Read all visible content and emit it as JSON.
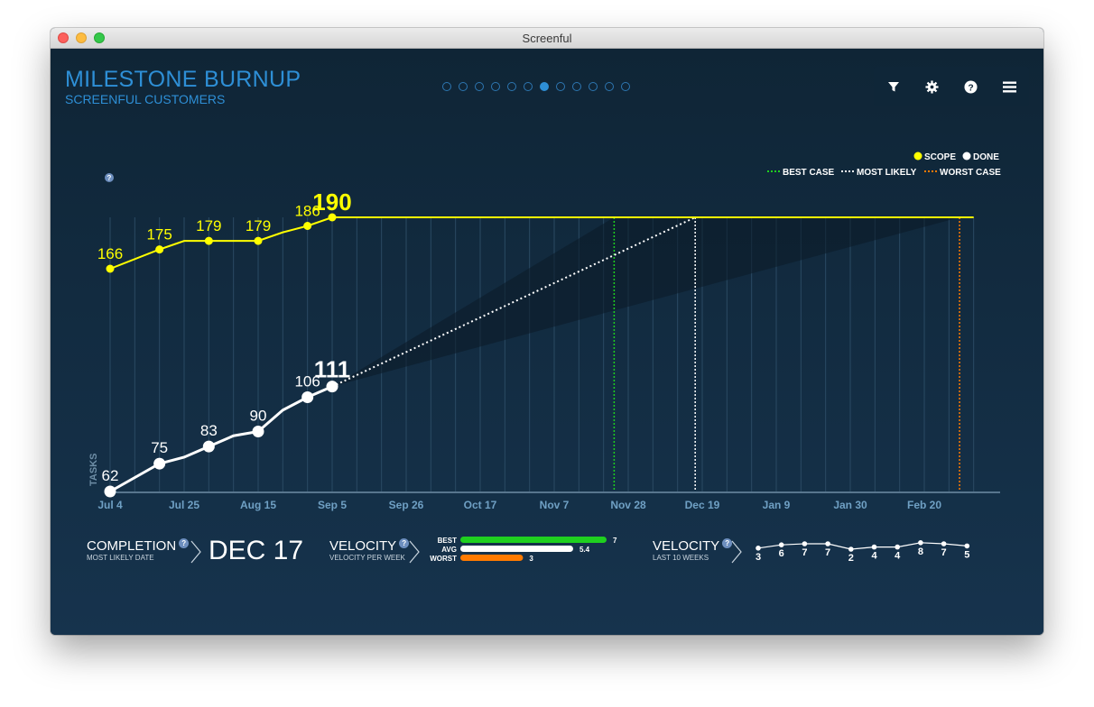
{
  "window": {
    "title": "Screenful"
  },
  "header": {
    "title": "MILESTONE BURNUP",
    "subtitle": "SCREENFUL CUSTOMERS"
  },
  "pager": {
    "count": 12,
    "active_index": 6
  },
  "toolbar": {
    "icons": [
      "filter-icon",
      "gear-icon",
      "help-icon",
      "menu-icon"
    ]
  },
  "legend": {
    "scope": "SCOPE",
    "done": "DONE",
    "best": "BEST CASE",
    "likely": "MOST LIKELY",
    "worst": "WORST CASE"
  },
  "help_mark": "?",
  "chart_data": {
    "type": "line",
    "ylabel": "TASKS",
    "x_ticks": [
      "Jul 4",
      "Jul 25",
      "Aug 15",
      "Sep 5",
      "Sep 26",
      "Oct 17",
      "Nov 7",
      "Nov 28",
      "Dec 19",
      "Jan 9",
      "Jan 30",
      "Feb 20"
    ],
    "colors": {
      "scope": "#ffff00",
      "done": "#ffffff",
      "best": "#1fd01f",
      "likely": "#ffffff",
      "worst": "#ff7a00",
      "grid": "#2a4a63",
      "axis": "#6e8ea6"
    },
    "series": [
      {
        "name": "SCOPE",
        "points": [
          {
            "x": "Jul 4",
            "y": 166,
            "label": "166"
          },
          {
            "x": "Jul 18",
            "y": 175,
            "label": "175"
          },
          {
            "x": "Jul 25",
            "y": 179
          },
          {
            "x": "Aug 1",
            "y": 179,
            "label": "179"
          },
          {
            "x": "Aug 15",
            "y": 179,
            "label": "179"
          },
          {
            "x": "Aug 22",
            "y": 183
          },
          {
            "x": "Aug 29",
            "y": 186,
            "label": "186"
          },
          {
            "x": "Sep 5",
            "y": 190,
            "label": "190"
          }
        ],
        "projection_end": "Mar 6"
      },
      {
        "name": "DONE",
        "points": [
          {
            "x": "Jul 4",
            "y": 62,
            "label": "62"
          },
          {
            "x": "Jul 18",
            "y": 75,
            "label": "75"
          },
          {
            "x": "Jul 25",
            "y": 78
          },
          {
            "x": "Aug 1",
            "y": 83,
            "label": "83"
          },
          {
            "x": "Aug 8",
            "y": 88
          },
          {
            "x": "Aug 15",
            "y": 90,
            "label": "90"
          },
          {
            "x": "Aug 22",
            "y": 100
          },
          {
            "x": "Aug 29",
            "y": 106,
            "label": "106"
          },
          {
            "x": "Sep 5",
            "y": 111,
            "label": "111"
          }
        ]
      }
    ],
    "forecast": {
      "best": "Nov 24",
      "most_likely": "Dec 17",
      "worst": "Mar 2"
    }
  },
  "completion": {
    "title": "COMPLETION",
    "subtitle": "MOST LIKELY DATE",
    "value": "DEC 17"
  },
  "velocity": {
    "title": "VELOCITY",
    "subtitle": "VELOCITY PER WEEK",
    "bars": [
      {
        "label": "BEST",
        "value": 7,
        "display": "7",
        "color": "#1fd01f"
      },
      {
        "label": "AVG",
        "value": 5.4,
        "display": "5.4",
        "color": "#ffffff"
      },
      {
        "label": "WORST",
        "value": 3,
        "display": "3",
        "color": "#ff7a00"
      }
    ]
  },
  "velocity_history": {
    "title": "VELOCITY",
    "subtitle": "LAST 10 WEEKS",
    "values": [
      3,
      6,
      7,
      7,
      2,
      4,
      4,
      8,
      7,
      5
    ]
  }
}
